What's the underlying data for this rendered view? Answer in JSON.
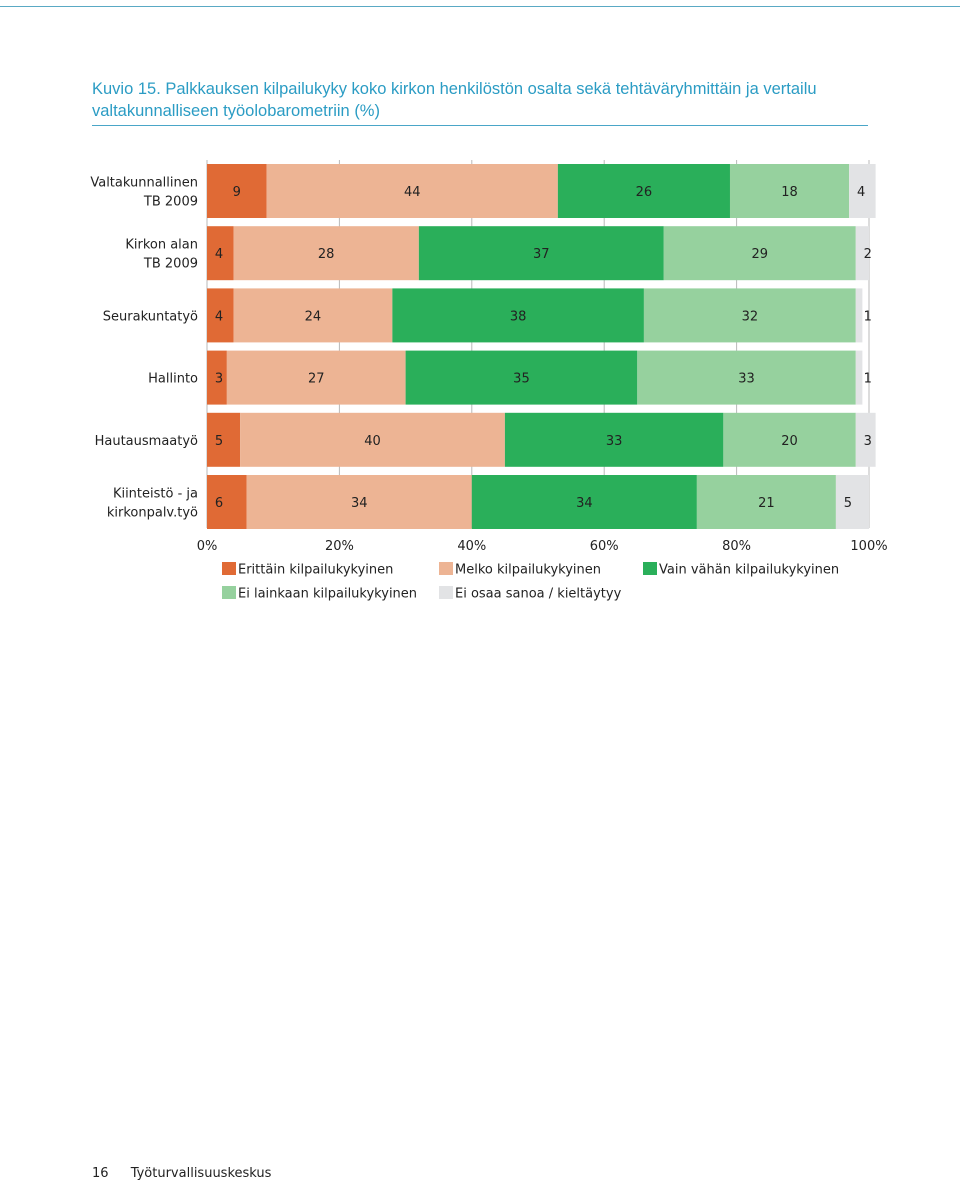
{
  "figure": {
    "title": "Kuvio 15. Palkkauksen kilpailukyky koko kirkon henkilöstön osalta sekä tehtäväryhmittäin ja vertailu valtakunnalliseen työolobarometriin (%)"
  },
  "footer": {
    "page_number": "16",
    "publisher": "Työturvallisuuskeskus"
  },
  "colors": {
    "series": [
      "#e06a35",
      "#edb494",
      "#2aaf5a",
      "#96d19e",
      "#e2e3e5"
    ],
    "title": "#2b9cc4"
  },
  "chart_data": {
    "type": "bar",
    "orientation": "horizontal",
    "stacked": true,
    "categories": [
      [
        "Valtakunnallinen",
        "TB 2009"
      ],
      [
        "Kirkon alan",
        "TB 2009"
      ],
      [
        "Seurakuntatyö"
      ],
      [
        "Hallinto"
      ],
      [
        "Hautausmaatyö"
      ],
      [
        "Kiinteistö - ja",
        "kirkonpalv.työ"
      ]
    ],
    "series": [
      {
        "name": "Erittäin kilpailukykyinen",
        "values": [
          9,
          4,
          4,
          3,
          5,
          6
        ]
      },
      {
        "name": "Melko kilpailukykyinen",
        "values": [
          44,
          28,
          24,
          27,
          40,
          34
        ]
      },
      {
        "name": "Vain vähän kilpailukykyinen",
        "values": [
          26,
          37,
          38,
          35,
          33,
          34
        ]
      },
      {
        "name": "Ei lainkaan kilpailukykyinen",
        "values": [
          18,
          29,
          32,
          33,
          20,
          21
        ]
      },
      {
        "name": "Ei osaa sanoa / kieltäytyy",
        "values": [
          4,
          2,
          1,
          1,
          3,
          5
        ]
      }
    ],
    "xlim": [
      0,
      100
    ],
    "x_ticks": [
      "0%",
      "20%",
      "40%",
      "60%",
      "80%",
      "100%"
    ],
    "grid": true,
    "legend_position": "bottom",
    "data_labels": true
  }
}
